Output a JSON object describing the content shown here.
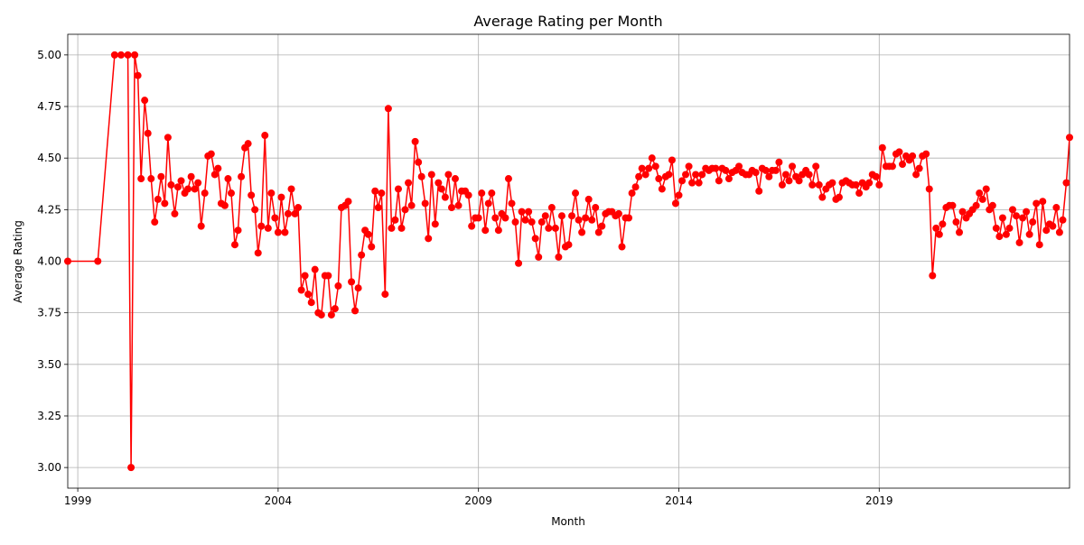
{
  "chart_data": {
    "type": "line",
    "title": "Average Rating per Month",
    "x_label": "Month",
    "y_label": "Average Rating",
    "grid": true,
    "xlim": [
      1998.75,
      2023.75
    ],
    "xticks": [
      1999,
      2004,
      2009,
      2014,
      2019
    ],
    "ylim": [
      2.9,
      5.1
    ],
    "yticks": [
      {
        "value": 3,
        "label": "3.00"
      },
      {
        "value": 3.25,
        "label": "3.25"
      },
      {
        "value": 3.5,
        "label": "3.50"
      },
      {
        "value": 3.75,
        "label": "3.75"
      },
      {
        "value": 4,
        "label": "4.00"
      },
      {
        "value": 4.25,
        "label": "4.25"
      },
      {
        "value": 4.5,
        "label": "4.50"
      },
      {
        "value": 4.75,
        "label": "4.75"
      },
      {
        "value": 5,
        "label": "5.00"
      }
    ],
    "series": [
      {
        "color": "#ff0000",
        "x": [
          1998.75,
          1999.5,
          1999.92,
          2000.08,
          2000.25,
          2000.33,
          2000.42,
          2000.5,
          2000.58,
          2000.67,
          2000.75,
          2000.83,
          2000.92,
          2001,
          2001.08,
          2001.17,
          2001.25,
          2001.33,
          2001.42,
          2001.5,
          2001.58,
          2001.67,
          2001.75,
          2001.83,
          2001.92,
          2002,
          2002.08,
          2002.17,
          2002.25,
          2002.33,
          2002.42,
          2002.5,
          2002.58,
          2002.67,
          2002.75,
          2002.83,
          2002.92,
          2003,
          2003.08,
          2003.17,
          2003.25,
          2003.33,
          2003.42,
          2003.5,
          2003.58,
          2003.67,
          2003.75,
          2003.83,
          2003.92,
          2004,
          2004.08,
          2004.17,
          2004.25,
          2004.33,
          2004.42,
          2004.5,
          2004.58,
          2004.67,
          2004.75,
          2004.83,
          2004.92,
          2005,
          2005.08,
          2005.17,
          2005.25,
          2005.33,
          2005.42,
          2005.5,
          2005.58,
          2005.67,
          2005.75,
          2005.83,
          2005.92,
          2006,
          2006.08,
          2006.17,
          2006.25,
          2006.33,
          2006.42,
          2006.5,
          2006.58,
          2006.67,
          2006.75,
          2006.83,
          2006.92,
          2007,
          2007.08,
          2007.17,
          2007.25,
          2007.33,
          2007.42,
          2007.5,
          2007.58,
          2007.67,
          2007.75,
          2007.83,
          2007.92,
          2008,
          2008.08,
          2008.17,
          2008.25,
          2008.33,
          2008.42,
          2008.5,
          2008.58,
          2008.67,
          2008.75,
          2008.83,
          2008.92,
          2009,
          2009.08,
          2009.17,
          2009.25,
          2009.33,
          2009.42,
          2009.5,
          2009.58,
          2009.67,
          2009.75,
          2009.83,
          2009.92,
          2010,
          2010.08,
          2010.17,
          2010.25,
          2010.33,
          2010.42,
          2010.5,
          2010.58,
          2010.67,
          2010.75,
          2010.83,
          2010.92,
          2011,
          2011.08,
          2011.17,
          2011.25,
          2011.33,
          2011.42,
          2011.5,
          2011.58,
          2011.67,
          2011.75,
          2011.83,
          2011.92,
          2012,
          2012.08,
          2012.17,
          2012.25,
          2012.33,
          2012.42,
          2012.5,
          2012.58,
          2012.67,
          2012.75,
          2012.83,
          2012.92,
          2013,
          2013.08,
          2013.17,
          2013.25,
          2013.33,
          2013.42,
          2013.5,
          2013.58,
          2013.67,
          2013.75,
          2013.83,
          2013.92,
          2014,
          2014.08,
          2014.17,
          2014.25,
          2014.33,
          2014.42,
          2014.5,
          2014.58,
          2014.67,
          2014.75,
          2014.83,
          2014.92,
          2015,
          2015.08,
          2015.17,
          2015.25,
          2015.33,
          2015.42,
          2015.5,
          2015.58,
          2015.67,
          2015.75,
          2015.83,
          2015.92,
          2016,
          2016.08,
          2016.17,
          2016.25,
          2016.33,
          2016.42,
          2016.5,
          2016.58,
          2016.67,
          2016.75,
          2016.83,
          2016.92,
          2017,
          2017.08,
          2017.17,
          2017.25,
          2017.33,
          2017.42,
          2017.5,
          2017.58,
          2017.67,
          2017.75,
          2017.83,
          2017.92,
          2018,
          2018.08,
          2018.17,
          2018.25,
          2018.33,
          2018.42,
          2018.5,
          2018.58,
          2018.67,
          2018.75,
          2018.83,
          2018.92,
          2019,
          2019.08,
          2019.17,
          2019.25,
          2019.33,
          2019.42,
          2019.5,
          2019.58,
          2019.67,
          2019.75,
          2019.83,
          2019.92,
          2020,
          2020.08,
          2020.17,
          2020.25,
          2020.33,
          2020.42,
          2020.5,
          2020.58,
          2020.67,
          2020.75,
          2020.83,
          2020.92,
          2021,
          2021.08,
          2021.17,
          2021.25,
          2021.33,
          2021.42,
          2021.5,
          2021.58,
          2021.67,
          2021.75,
          2021.83,
          2021.92,
          2022,
          2022.08,
          2022.17,
          2022.25,
          2022.33,
          2022.42,
          2022.5,
          2022.58,
          2022.67,
          2022.75,
          2022.83,
          2022.92,
          2023,
          2023.08,
          2023.17,
          2023.25,
          2023.33,
          2023.42,
          2023.5,
          2023.58,
          2023.67,
          2023.75
        ],
        "values": [
          4,
          4,
          5,
          5,
          5,
          3,
          5,
          4.9,
          4.4,
          4.78,
          4.62,
          4.4,
          4.19,
          4.3,
          4.41,
          4.28,
          4.6,
          4.37,
          4.23,
          4.36,
          4.39,
          4.33,
          4.35,
          4.41,
          4.35,
          4.38,
          4.17,
          4.33,
          4.51,
          4.52,
          4.42,
          4.45,
          4.28,
          4.27,
          4.4,
          4.33,
          4.08,
          4.15,
          4.41,
          4.55,
          4.57,
          4.32,
          4.25,
          4.04,
          4.17,
          4.61,
          4.16,
          4.33,
          4.21,
          4.14,
          4.31,
          4.14,
          4.23,
          4.35,
          4.23,
          4.26,
          3.86,
          3.93,
          3.84,
          3.8,
          3.96,
          3.75,
          3.74,
          3.93,
          3.93,
          3.74,
          3.77,
          3.88,
          4.26,
          4.27,
          4.29,
          3.9,
          3.76,
          3.87,
          4.03,
          4.15,
          4.13,
          4.07,
          4.34,
          4.26,
          4.33,
          3.84,
          4.74,
          4.16,
          4.2,
          4.35,
          4.16,
          4.25,
          4.38,
          4.27,
          4.58,
          4.48,
          4.41,
          4.28,
          4.11,
          4.42,
          4.18,
          4.38,
          4.35,
          4.31,
          4.42,
          4.26,
          4.4,
          4.27,
          4.34,
          4.34,
          4.32,
          4.17,
          4.21,
          4.21,
          4.33,
          4.15,
          4.28,
          4.33,
          4.21,
          4.15,
          4.23,
          4.21,
          4.4,
          4.28,
          4.19,
          3.99,
          4.24,
          4.2,
          4.24,
          4.19,
          4.11,
          4.02,
          4.19,
          4.22,
          4.16,
          4.26,
          4.16,
          4.02,
          4.22,
          4.07,
          4.08,
          4.22,
          4.33,
          4.2,
          4.14,
          4.21,
          4.3,
          4.2,
          4.26,
          4.14,
          4.17,
          4.23,
          4.24,
          4.24,
          4.22,
          4.23,
          4.07,
          4.21,
          4.21,
          4.33,
          4.36,
          4.41,
          4.45,
          4.42,
          4.45,
          4.5,
          4.46,
          4.4,
          4.35,
          4.41,
          4.42,
          4.49,
          4.28,
          4.32,
          4.39,
          4.42,
          4.46,
          4.38,
          4.42,
          4.38,
          4.42,
          4.45,
          4.44,
          4.45,
          4.45,
          4.39,
          4.45,
          4.44,
          4.4,
          4.43,
          4.44,
          4.46,
          4.43,
          4.42,
          4.42,
          4.44,
          4.43,
          4.34,
          4.45,
          4.44,
          4.41,
          4.44,
          4.44,
          4.48,
          4.37,
          4.42,
          4.39,
          4.46,
          4.41,
          4.39,
          4.42,
          4.44,
          4.42,
          4.37,
          4.46,
          4.37,
          4.31,
          4.35,
          4.37,
          4.38,
          4.3,
          4.31,
          4.38,
          4.39,
          4.38,
          4.37,
          4.37,
          4.33,
          4.38,
          4.36,
          4.38,
          4.42,
          4.41,
          4.37,
          4.55,
          4.46,
          4.46,
          4.46,
          4.52,
          4.53,
          4.47,
          4.51,
          4.49,
          4.51,
          4.42,
          4.45,
          4.51,
          4.52,
          4.35,
          3.93,
          4.16,
          4.13,
          4.18,
          4.26,
          4.27,
          4.27,
          4.19,
          4.14,
          4.24,
          4.21,
          4.23,
          4.25,
          4.27,
          4.33,
          4.3,
          4.35,
          4.25,
          4.27,
          4.16,
          4.12,
          4.21,
          4.13,
          4.16,
          4.25,
          4.22,
          4.09,
          4.21,
          4.24,
          4.13,
          4.19,
          4.28,
          4.08,
          4.29,
          4.15,
          4.18,
          4.17,
          4.26,
          4.14,
          4.2,
          4.38,
          4.6
        ]
      }
    ]
  }
}
